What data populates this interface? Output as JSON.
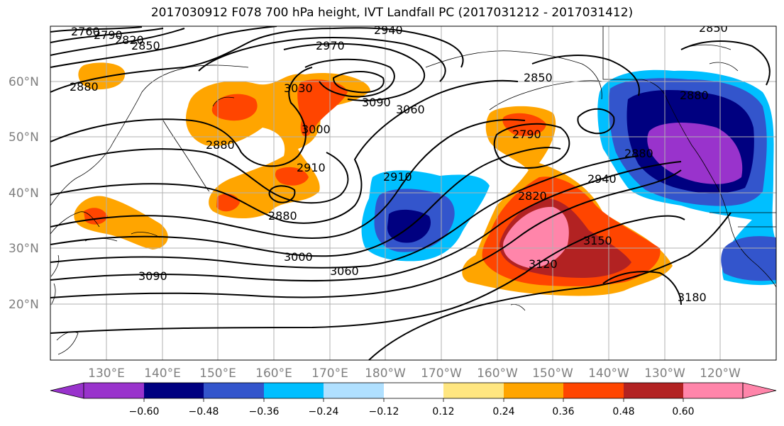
{
  "title": "2017030912 F078 700 hPa height, IVT Landfall PC (2017031212 - 2017031412)",
  "map": {
    "lon_ticks": [
      "130°E",
      "140°E",
      "150°E",
      "160°E",
      "170°E",
      "180°W",
      "170°W",
      "160°W",
      "150°W",
      "140°W",
      "130°W",
      "120°W"
    ],
    "lat_ticks": [
      "60°N",
      "50°N",
      "40°N",
      "30°N",
      "20°N"
    ],
    "grid": true
  },
  "contour_labels": [
    "2760",
    "2790",
    "2820",
    "2850",
    "2880",
    "2940",
    "2970",
    "3030",
    "3090",
    "3060",
    "2880",
    "3000",
    "2910",
    "2880",
    "2850",
    "2790",
    "2910",
    "2820",
    "2940",
    "2880",
    "2880",
    "3000",
    "3060",
    "3090",
    "3120",
    "3150",
    "3180",
    "2850"
  ],
  "colorbar": {
    "labels": [
      "−0.60",
      "−0.48",
      "−0.36",
      "−0.24",
      "−0.12",
      "0.12",
      "0.24",
      "0.36",
      "0.48",
      "0.60"
    ],
    "colors": [
      "#9933cc",
      "#000080",
      "#3355cc",
      "#00bfff",
      "#b0e0ff",
      "#ffffff",
      "#ffe680",
      "#ffa500",
      "#ff4500",
      "#b22222",
      "#ff85aa"
    ]
  },
  "shading_colors": {
    "orange": "#ffa500",
    "red": "#ff4500",
    "darkred": "#b22222",
    "pink": "#ff85aa",
    "yellow": "#ffe680",
    "cyan": "#00bfff",
    "blue": "#3355cc",
    "navy": "#000080",
    "purple": "#9933cc"
  }
}
